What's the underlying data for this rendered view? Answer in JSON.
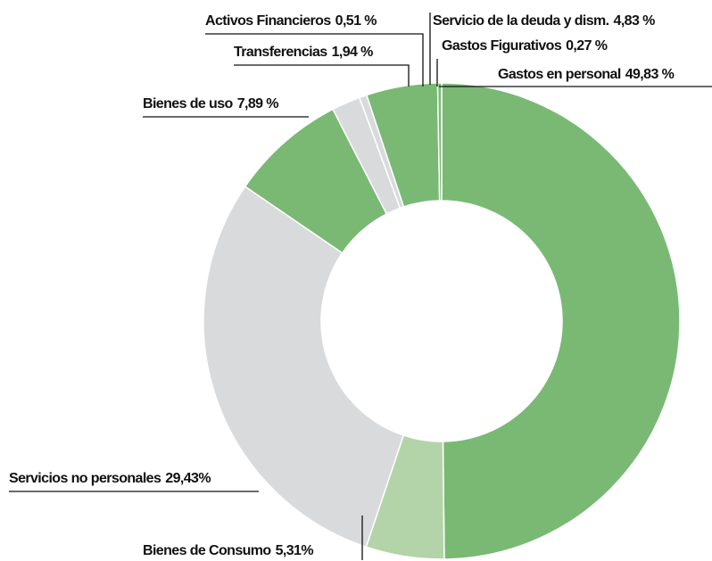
{
  "chart_data": {
    "type": "donut",
    "categories": [
      "Gastos en personal",
      "Bienes de Consumo",
      "Servicios no personales",
      "Bienes de uso",
      "Transferencias",
      "Activos Financieros",
      "Servicio de la deuda y dism.",
      "Gastos Figurativos"
    ],
    "values": [
      49.83,
      5.31,
      29.43,
      7.89,
      1.94,
      0.51,
      4.83,
      0.27
    ],
    "value_labels": [
      "49,83 %",
      "5,31%",
      "29,43%",
      "7,89 %",
      "1,94 %",
      "0,51 %",
      "4,83 %",
      "0,27 %"
    ],
    "colors": [
      "#79b974",
      "#b3d4a8",
      "#d9dadc",
      "#79b974",
      "#d9dadc",
      "#d9dadc",
      "#79b974",
      "#79b974"
    ]
  }
}
